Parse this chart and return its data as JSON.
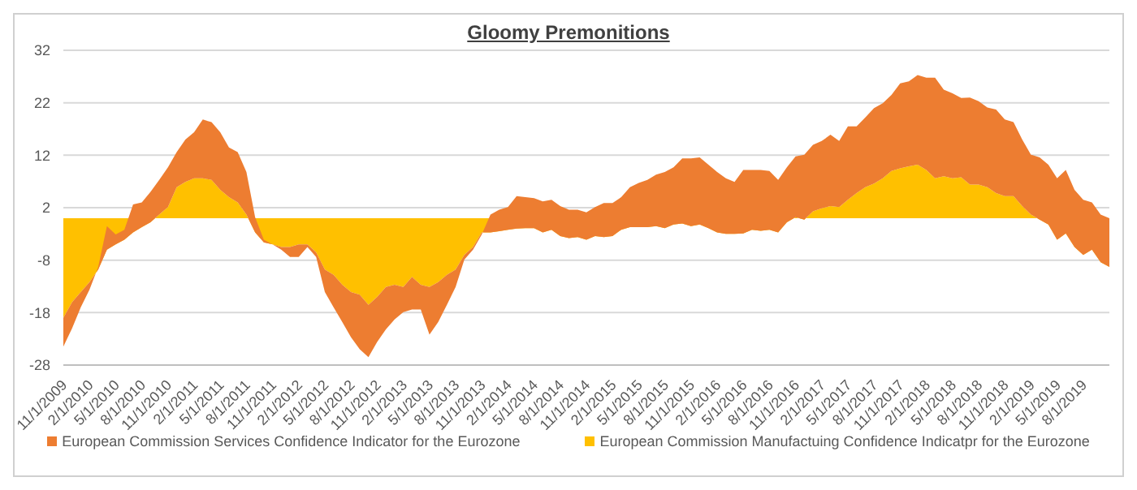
{
  "chart_data": {
    "type": "area",
    "title": "Gloomy Premonitions",
    "stacked": true,
    "categories": [
      "11/1/2009",
      null,
      null,
      "2/1/2010",
      null,
      null,
      "5/1/2010",
      null,
      null,
      "8/1/2010",
      null,
      null,
      "11/1/2010",
      null,
      null,
      "2/1/2011",
      null,
      null,
      "5/1/2011",
      null,
      null,
      "8/1/2011",
      null,
      null,
      "11/1/2011",
      null,
      null,
      "2/1/2012",
      null,
      null,
      "5/1/2012",
      null,
      null,
      "8/1/2012",
      null,
      null,
      "11/1/2012",
      null,
      null,
      "2/1/2013",
      null,
      null,
      "5/1/2013",
      null,
      null,
      "8/1/2013",
      null,
      null,
      "11/1/2013",
      null,
      null,
      "2/1/2014",
      null,
      null,
      "5/1/2014",
      null,
      null,
      "8/1/2014",
      null,
      null,
      "11/1/2014",
      null,
      null,
      "2/1/2015",
      null,
      null,
      "5/1/2015",
      null,
      null,
      "8/1/2015",
      null,
      null,
      "11/1/2015",
      null,
      null,
      "2/1/2016",
      null,
      null,
      "5/1/2016",
      null,
      null,
      "8/1/2016",
      null,
      null,
      "11/1/2016",
      null,
      null,
      "2/1/2017",
      null,
      null,
      "5/1/2017",
      null,
      null,
      "8/1/2017",
      null,
      null,
      "11/1/2017",
      null,
      null,
      "2/1/2018",
      null,
      null,
      "5/1/2018",
      null,
      null,
      "8/1/2018",
      null,
      null,
      "11/1/2018",
      null,
      null,
      "2/1/2019",
      null,
      null,
      "5/1/2019",
      null,
      null,
      "8/1/2019",
      null,
      null,
      null
    ],
    "series": [
      {
        "name": "European Commission Manufactuing Confidence Indicatpr for the Eurozone",
        "color": "#ffc000",
        "values": [
          -19,
          -16,
          -14.1,
          -12.2,
          -9.8,
          -6,
          -5,
          -4.1,
          -2.7,
          -1.7,
          -0.8,
          0.7,
          2.1,
          5.9,
          6.9,
          7.6,
          7.6,
          7.3,
          5.4,
          4,
          3,
          0.7,
          -2.7,
          -4.6,
          -5,
          -5.5,
          -5.5,
          -5,
          -5,
          -6.5,
          -9.8,
          -10.8,
          -12.7,
          -14.1,
          -14.6,
          -16.5,
          -15,
          -13.1,
          -12.7,
          -13.1,
          -11.2,
          -12.7,
          -13.1,
          -12.2,
          -10.8,
          -9.8,
          -7,
          -5.5,
          -2.7,
          -2.7,
          -2.5,
          -2.2,
          -2,
          -1.9,
          -1.9,
          -2.7,
          -2.2,
          -3.4,
          -3.8,
          -3.6,
          -4.1,
          -3.4,
          -3.6,
          -3.4,
          -2.2,
          -1.7,
          -1.7,
          -1.7,
          -1.5,
          -1.9,
          -1.2,
          -1,
          -1.5,
          -1.2,
          -1.9,
          -2.7,
          -3,
          -3,
          -2.9,
          -2.2,
          -2.4,
          -2.2,
          -2.7,
          -0.8,
          0.2,
          -0.3,
          1.3,
          1.9,
          2.3,
          2.1,
          3.5,
          4.8,
          5.9,
          6.6,
          7.6,
          9,
          9.5,
          9.9,
          10.2,
          9.2,
          7.6,
          8,
          7.6,
          7.8,
          6.4,
          6.4,
          5.9,
          4.8,
          4.2,
          4.2,
          2.3,
          0.7,
          -0.3,
          -1.2,
          -4.1,
          -2.9,
          -5.5,
          -7,
          -6,
          -8.4,
          -9.3
        ]
      },
      {
        "name": "European Commission Services Confidence Indicator for the Eurozone",
        "color": "#ed7d31",
        "values": [
          -5.5,
          -5,
          -2.9,
          -1.4,
          0.5,
          4.5,
          1.9,
          1.9,
          5.3,
          4.7,
          5.8,
          6.6,
          7.6,
          6.7,
          8.1,
          8.8,
          11.2,
          11,
          11,
          9.5,
          9.6,
          8.1,
          2.9,
          0.5,
          0,
          -0.5,
          -1.9,
          -2.4,
          -0.5,
          -0.9,
          -4.3,
          -6.2,
          -7.1,
          -8.6,
          -10.4,
          -10,
          -8.6,
          -8.1,
          -6.6,
          -4.8,
          -6.2,
          -4.7,
          -9.1,
          -7.6,
          -5.7,
          -3.3,
          -0.9,
          -0.5,
          -0.4,
          3.4,
          4.1,
          4.3,
          6.2,
          5.9,
          5.7,
          5.9,
          5.7,
          5.7,
          5.4,
          5.2,
          5.2,
          5.5,
          6.5,
          6.3,
          6.2,
          7.6,
          8.4,
          9,
          9.8,
          10.7,
          10.9,
          12.4,
          12.9,
          12.8,
          12.1,
          11.5,
          10.6,
          9.9,
          12.1,
          11.4,
          11.6,
          11.2,
          10,
          10.5,
          11.6,
          12.4,
          12.7,
          12.8,
          13.6,
          12.6,
          14,
          12.7,
          13.3,
          14.4,
          14.3,
          14.5,
          16.2,
          16.2,
          17.1,
          17.6,
          19.2,
          16.5,
          16.2,
          15.1,
          16.6,
          15.9,
          15.2,
          15.9,
          14.6,
          14.1,
          12.7,
          11.4,
          11.9,
          11.4,
          11.7,
          12.1,
          10.9,
          10.5,
          9,
          9.1,
          9.3
        ]
      }
    ],
    "ylim": [
      -28,
      32
    ],
    "yticks": [
      -28,
      -18,
      -8,
      2,
      12,
      22,
      32
    ],
    "grid": "y",
    "legend": "bottom"
  }
}
